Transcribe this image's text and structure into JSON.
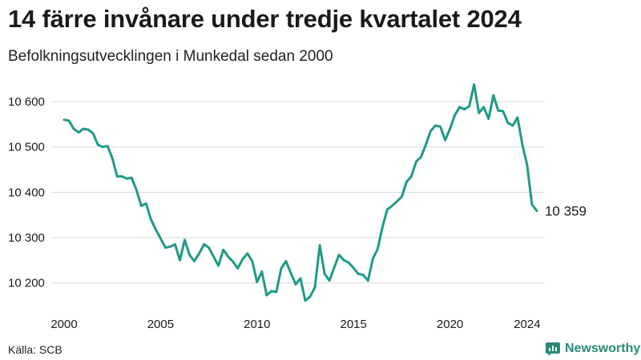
{
  "title": "14 färre invånare under tredje kvartalet 2024",
  "subtitle": "Befolkningsutvecklingen i Munkedal sedan 2000",
  "source": "Källa: SCB",
  "brand": {
    "name": "Newsworthy",
    "icon": "newsworthy-logo-icon"
  },
  "colors": {
    "line": "#1f9a85",
    "grid": "#d9d9d9",
    "text": "#1a1a1a",
    "brand": "#2a8a78"
  },
  "chart_data": {
    "type": "line",
    "title": "14 färre invånare under tredje kvartalet 2024",
    "subtitle": "Befolkningsutvecklingen i Munkedal sedan 2000",
    "xlabel": "",
    "ylabel": "",
    "xlim": [
      2000,
      2025
    ],
    "ylim": [
      10150,
      10630
    ],
    "grid": true,
    "x_ticks": [
      2000,
      2005,
      2010,
      2015,
      2020,
      2024
    ],
    "y_ticks": [
      10200,
      10300,
      10400,
      10500,
      10600
    ],
    "y_tick_labels": [
      "10 200",
      "10 300",
      "10 400",
      "10 500",
      "10 600"
    ],
    "end_label": "10 359",
    "series": [
      {
        "values": [
          10560,
          10558,
          10540,
          10532,
          10540,
          10538,
          10530,
          10505,
          10500,
          10502,
          10475,
          10435,
          10435,
          10430,
          10432,
          10405,
          10370,
          10375,
          10340,
          10318,
          10298,
          10278,
          10280,
          10285,
          10250,
          10295,
          10262,
          10248,
          10265,
          10285,
          10278,
          10258,
          10238,
          10273,
          10258,
          10247,
          10232,
          10252,
          10265,
          10248,
          10202,
          10225,
          10173,
          10182,
          10180,
          10232,
          10248,
          10222,
          10197,
          10210,
          10161,
          10170,
          10190,
          10283,
          10220,
          10205,
          10234,
          10262,
          10250,
          10245,
          10233,
          10220,
          10218,
          10205,
          10253,
          10275,
          10323,
          10362,
          10370,
          10380,
          10390,
          10423,
          10435,
          10468,
          10478,
          10505,
          10535,
          10547,
          10545,
          10515,
          10540,
          10570,
          10588,
          10583,
          10590,
          10638,
          10575,
          10588,
          10562,
          10614,
          10580,
          10579,
          10553,
          10547,
          10565,
          10505,
          10460,
          10373,
          10359
        ],
        "x_start": 2000.0,
        "x_step": 0.25
      }
    ]
  }
}
